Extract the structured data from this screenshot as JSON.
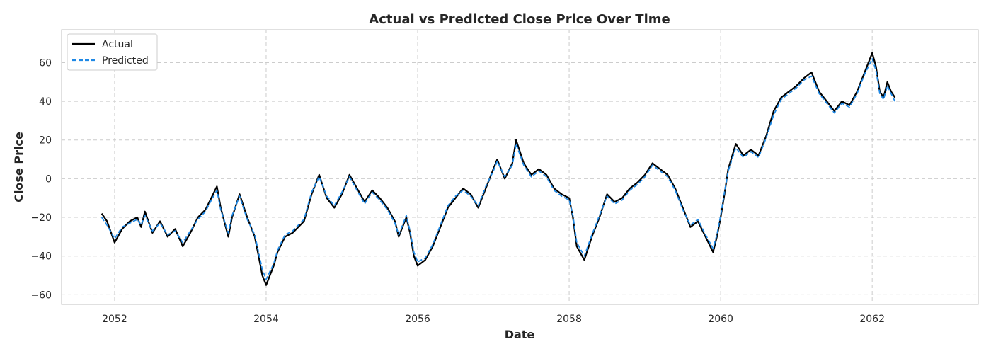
{
  "chart_data": {
    "type": "line",
    "title": "Actual vs Predicted Close Price Over Time",
    "xlabel": "Date",
    "ylabel": "Close Price",
    "xlim": [
      2051.3,
      2063.4
    ],
    "ylim": [
      -65,
      77
    ],
    "xticks": [
      2052,
      2054,
      2056,
      2058,
      2060,
      2062
    ],
    "xtick_labels": [
      "2052",
      "2054",
      "2056",
      "2058",
      "2060",
      "2062"
    ],
    "yticks": [
      -60,
      -40,
      -20,
      0,
      20,
      40,
      60
    ],
    "ytick_labels": [
      "−60",
      "−40",
      "−20",
      "0",
      "20",
      "40",
      "60"
    ],
    "grid": true,
    "legend_position": "top-left",
    "series": [
      {
        "name": "Actual",
        "color": "#000000",
        "style": "solid",
        "points": [
          [
            2051.83,
            -18
          ],
          [
            2051.9,
            -22
          ],
          [
            2052.0,
            -33
          ],
          [
            2052.1,
            -26
          ],
          [
            2052.2,
            -22
          ],
          [
            2052.3,
            -20
          ],
          [
            2052.35,
            -25
          ],
          [
            2052.4,
            -17
          ],
          [
            2052.5,
            -28
          ],
          [
            2052.6,
            -22
          ],
          [
            2052.7,
            -30
          ],
          [
            2052.8,
            -26
          ],
          [
            2052.9,
            -35
          ],
          [
            2053.0,
            -28
          ],
          [
            2053.1,
            -20
          ],
          [
            2053.2,
            -16
          ],
          [
            2053.25,
            -12
          ],
          [
            2053.35,
            -4
          ],
          [
            2053.4,
            -15
          ],
          [
            2053.5,
            -30
          ],
          [
            2053.55,
            -20
          ],
          [
            2053.65,
            -8
          ],
          [
            2053.75,
            -20
          ],
          [
            2053.85,
            -30
          ],
          [
            2053.9,
            -40
          ],
          [
            2053.95,
            -50
          ],
          [
            2054.0,
            -55
          ],
          [
            2054.05,
            -50
          ],
          [
            2054.1,
            -45
          ],
          [
            2054.15,
            -38
          ],
          [
            2054.25,
            -30
          ],
          [
            2054.35,
            -28
          ],
          [
            2054.5,
            -22
          ],
          [
            2054.6,
            -8
          ],
          [
            2054.7,
            2
          ],
          [
            2054.8,
            -10
          ],
          [
            2054.9,
            -15
          ],
          [
            2055.0,
            -8
          ],
          [
            2055.1,
            2
          ],
          [
            2055.2,
            -5
          ],
          [
            2055.3,
            -12
          ],
          [
            2055.4,
            -6
          ],
          [
            2055.5,
            -10
          ],
          [
            2055.6,
            -15
          ],
          [
            2055.7,
            -22
          ],
          [
            2055.75,
            -30
          ],
          [
            2055.85,
            -20
          ],
          [
            2055.9,
            -28
          ],
          [
            2055.95,
            -40
          ],
          [
            2056.0,
            -45
          ],
          [
            2056.1,
            -42
          ],
          [
            2056.2,
            -35
          ],
          [
            2056.3,
            -25
          ],
          [
            2056.4,
            -15
          ],
          [
            2056.5,
            -10
          ],
          [
            2056.6,
            -5
          ],
          [
            2056.7,
            -8
          ],
          [
            2056.8,
            -15
          ],
          [
            2056.9,
            -5
          ],
          [
            2057.0,
            5
          ],
          [
            2057.05,
            10
          ],
          [
            2057.15,
            0
          ],
          [
            2057.25,
            8
          ],
          [
            2057.3,
            20
          ],
          [
            2057.4,
            8
          ],
          [
            2057.5,
            2
          ],
          [
            2057.6,
            5
          ],
          [
            2057.7,
            2
          ],
          [
            2057.8,
            -5
          ],
          [
            2057.9,
            -8
          ],
          [
            2058.0,
            -10
          ],
          [
            2058.05,
            -20
          ],
          [
            2058.1,
            -35
          ],
          [
            2058.2,
            -42
          ],
          [
            2058.3,
            -30
          ],
          [
            2058.4,
            -20
          ],
          [
            2058.5,
            -8
          ],
          [
            2058.6,
            -12
          ],
          [
            2058.7,
            -10
          ],
          [
            2058.8,
            -5
          ],
          [
            2058.9,
            -2
          ],
          [
            2059.0,
            2
          ],
          [
            2059.1,
            8
          ],
          [
            2059.2,
            5
          ],
          [
            2059.3,
            2
          ],
          [
            2059.4,
            -5
          ],
          [
            2059.5,
            -15
          ],
          [
            2059.6,
            -25
          ],
          [
            2059.7,
            -22
          ],
          [
            2059.8,
            -30
          ],
          [
            2059.9,
            -38
          ],
          [
            2059.95,
            -30
          ],
          [
            2060.0,
            -20
          ],
          [
            2060.05,
            -8
          ],
          [
            2060.1,
            5
          ],
          [
            2060.2,
            18
          ],
          [
            2060.3,
            12
          ],
          [
            2060.4,
            15
          ],
          [
            2060.5,
            12
          ],
          [
            2060.6,
            22
          ],
          [
            2060.7,
            35
          ],
          [
            2060.8,
            42
          ],
          [
            2060.9,
            45
          ],
          [
            2061.0,
            48
          ],
          [
            2061.1,
            52
          ],
          [
            2061.2,
            55
          ],
          [
            2061.3,
            45
          ],
          [
            2061.4,
            40
          ],
          [
            2061.5,
            35
          ],
          [
            2061.6,
            40
          ],
          [
            2061.7,
            38
          ],
          [
            2061.8,
            45
          ],
          [
            2061.9,
            55
          ],
          [
            2062.0,
            65
          ],
          [
            2062.05,
            58
          ],
          [
            2062.1,
            45
          ],
          [
            2062.15,
            42
          ],
          [
            2062.2,
            50
          ],
          [
            2062.25,
            45
          ],
          [
            2062.3,
            42
          ]
        ]
      },
      {
        "name": "Predicted",
        "color": "#1e88e5",
        "style": "dashed",
        "points": [
          [
            2051.83,
            -20
          ],
          [
            2051.9,
            -24
          ],
          [
            2052.0,
            -31
          ],
          [
            2052.1,
            -25
          ],
          [
            2052.2,
            -23
          ],
          [
            2052.3,
            -21
          ],
          [
            2052.35,
            -24
          ],
          [
            2052.4,
            -19
          ],
          [
            2052.5,
            -27
          ],
          [
            2052.6,
            -23
          ],
          [
            2052.7,
            -29
          ],
          [
            2052.8,
            -27
          ],
          [
            2052.9,
            -33
          ],
          [
            2053.0,
            -27
          ],
          [
            2053.1,
            -21
          ],
          [
            2053.2,
            -17
          ],
          [
            2053.25,
            -13
          ],
          [
            2053.35,
            -6
          ],
          [
            2053.4,
            -16
          ],
          [
            2053.5,
            -28
          ],
          [
            2053.55,
            -19
          ],
          [
            2053.65,
            -9
          ],
          [
            2053.75,
            -21
          ],
          [
            2053.85,
            -29
          ],
          [
            2053.9,
            -38
          ],
          [
            2053.95,
            -47
          ],
          [
            2054.0,
            -52
          ],
          [
            2054.05,
            -48
          ],
          [
            2054.1,
            -44
          ],
          [
            2054.15,
            -37
          ],
          [
            2054.25,
            -29
          ],
          [
            2054.35,
            -27
          ],
          [
            2054.5,
            -21
          ],
          [
            2054.6,
            -7
          ],
          [
            2054.7,
            1
          ],
          [
            2054.8,
            -9
          ],
          [
            2054.9,
            -14
          ],
          [
            2055.0,
            -7
          ],
          [
            2055.1,
            1
          ],
          [
            2055.2,
            -6
          ],
          [
            2055.3,
            -13
          ],
          [
            2055.4,
            -7
          ],
          [
            2055.5,
            -11
          ],
          [
            2055.6,
            -16
          ],
          [
            2055.7,
            -23
          ],
          [
            2055.75,
            -29
          ],
          [
            2055.85,
            -19
          ],
          [
            2055.9,
            -27
          ],
          [
            2055.95,
            -38
          ],
          [
            2056.0,
            -43
          ],
          [
            2056.1,
            -41
          ],
          [
            2056.2,
            -34
          ],
          [
            2056.3,
            -24
          ],
          [
            2056.4,
            -14
          ],
          [
            2056.5,
            -9
          ],
          [
            2056.6,
            -6
          ],
          [
            2056.7,
            -9
          ],
          [
            2056.8,
            -14
          ],
          [
            2056.9,
            -4
          ],
          [
            2057.0,
            4
          ],
          [
            2057.05,
            9
          ],
          [
            2057.15,
            1
          ],
          [
            2057.25,
            7
          ],
          [
            2057.3,
            18
          ],
          [
            2057.4,
            7
          ],
          [
            2057.5,
            1
          ],
          [
            2057.6,
            4
          ],
          [
            2057.7,
            1
          ],
          [
            2057.8,
            -6
          ],
          [
            2057.9,
            -9
          ],
          [
            2058.0,
            -11
          ],
          [
            2058.05,
            -19
          ],
          [
            2058.1,
            -33
          ],
          [
            2058.2,
            -40
          ],
          [
            2058.3,
            -29
          ],
          [
            2058.4,
            -19
          ],
          [
            2058.5,
            -9
          ],
          [
            2058.6,
            -13
          ],
          [
            2058.7,
            -11
          ],
          [
            2058.8,
            -6
          ],
          [
            2058.9,
            -3
          ],
          [
            2059.0,
            1
          ],
          [
            2059.1,
            7
          ],
          [
            2059.2,
            4
          ],
          [
            2059.3,
            1
          ],
          [
            2059.4,
            -6
          ],
          [
            2059.5,
            -16
          ],
          [
            2059.6,
            -24
          ],
          [
            2059.7,
            -21
          ],
          [
            2059.8,
            -29
          ],
          [
            2059.9,
            -36
          ],
          [
            2059.95,
            -29
          ],
          [
            2060.0,
            -19
          ],
          [
            2060.05,
            -7
          ],
          [
            2060.1,
            4
          ],
          [
            2060.2,
            16
          ],
          [
            2060.3,
            11
          ],
          [
            2060.4,
            14
          ],
          [
            2060.5,
            11
          ],
          [
            2060.6,
            21
          ],
          [
            2060.7,
            33
          ],
          [
            2060.8,
            41
          ],
          [
            2060.9,
            44
          ],
          [
            2061.0,
            47
          ],
          [
            2061.1,
            51
          ],
          [
            2061.2,
            53
          ],
          [
            2061.3,
            44
          ],
          [
            2061.4,
            39
          ],
          [
            2061.5,
            34
          ],
          [
            2061.6,
            39
          ],
          [
            2061.7,
            37
          ],
          [
            2061.8,
            44
          ],
          [
            2061.9,
            54
          ],
          [
            2062.0,
            62
          ],
          [
            2062.05,
            56
          ],
          [
            2062.1,
            44
          ],
          [
            2062.15,
            41
          ],
          [
            2062.2,
            48
          ],
          [
            2062.25,
            44
          ],
          [
            2062.3,
            40
          ]
        ]
      }
    ]
  }
}
